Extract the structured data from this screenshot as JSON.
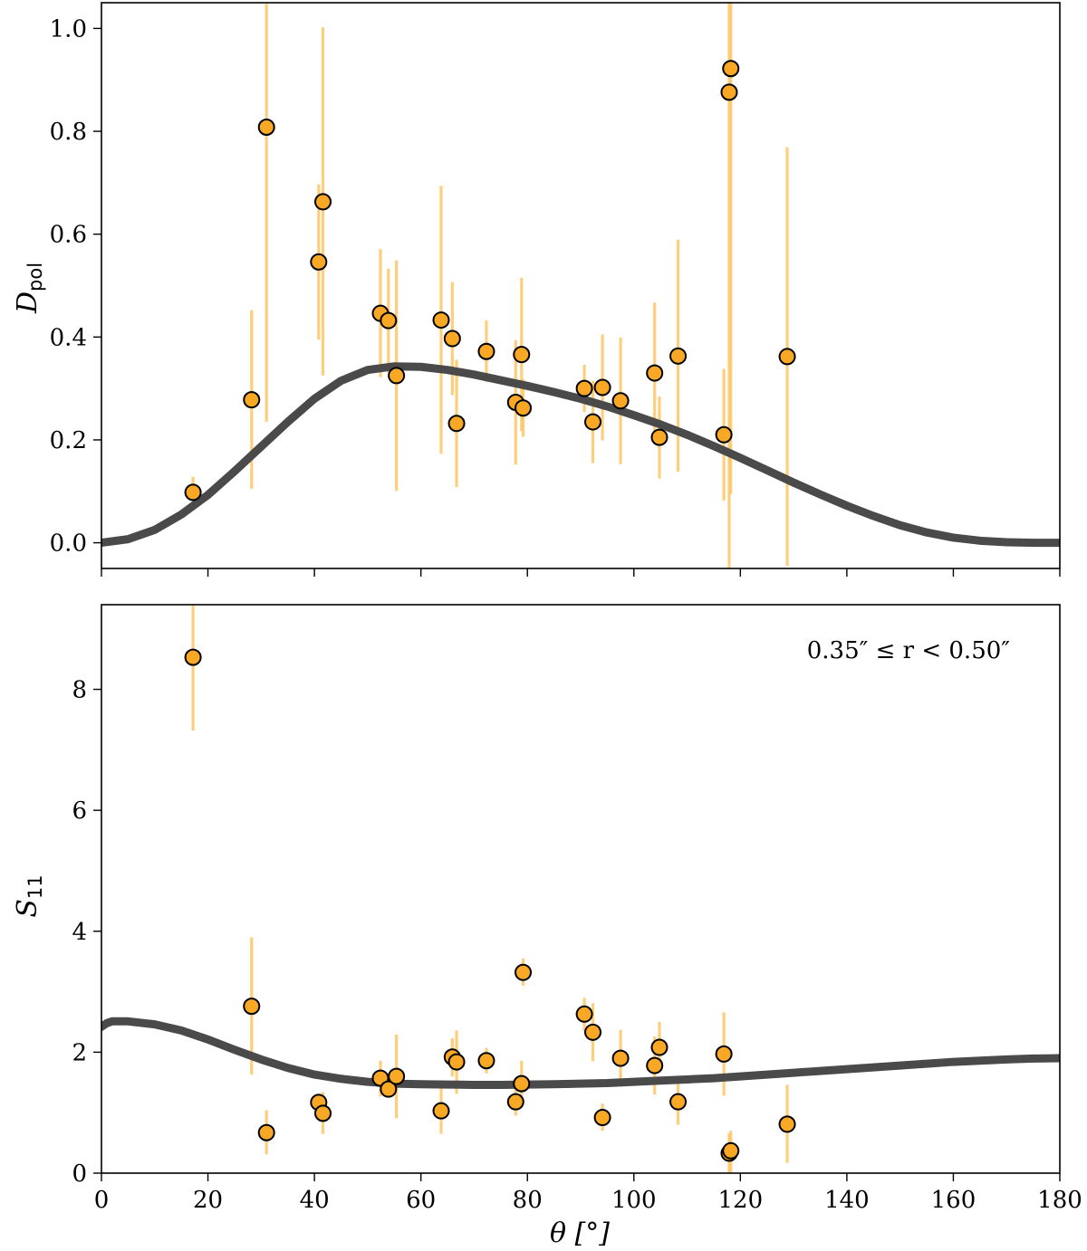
{
  "chart_data": [
    {
      "type": "scatter",
      "panel": "top",
      "ylabel": "D",
      "ylabel_sub": "pol",
      "xlabel": "",
      "xlim": [
        0,
        180
      ],
      "ylim": [
        -0.05,
        1.05
      ],
      "xticks": [
        0,
        20,
        40,
        60,
        80,
        100,
        120,
        140,
        160,
        180
      ],
      "xtick_labels_shown": false,
      "yticks": [
        0.0,
        0.2,
        0.4,
        0.6,
        0.8,
        1.0
      ],
      "ytick_labels": [
        "0.0",
        "0.2",
        "0.4",
        "0.6",
        "0.8",
        "1.0"
      ],
      "series": [
        {
          "name": "data",
          "color": "#f9a825",
          "errorbar_color": "#fdc664",
          "points": [
            {
              "x": 17.2,
              "y": 0.098,
              "lo": 0.068,
              "hi": 0.128
            },
            {
              "x": 28.2,
              "y": 0.278,
              "lo": 0.105,
              "hi": 0.452
            },
            {
              "x": 31.0,
              "y": 0.808,
              "lo": 0.235,
              "hi": 1.05
            },
            {
              "x": 40.8,
              "y": 0.546,
              "lo": 0.395,
              "hi": 0.697
            },
            {
              "x": 41.6,
              "y": 0.663,
              "lo": 0.325,
              "hi": 1.002
            },
            {
              "x": 52.4,
              "y": 0.446,
              "lo": 0.322,
              "hi": 0.571
            },
            {
              "x": 53.9,
              "y": 0.432,
              "lo": 0.331,
              "hi": 0.533
            },
            {
              "x": 55.4,
              "y": 0.325,
              "lo": 0.101,
              "hi": 0.549
            },
            {
              "x": 63.8,
              "y": 0.433,
              "lo": 0.173,
              "hi": 0.694
            },
            {
              "x": 65.9,
              "y": 0.397,
              "lo": 0.287,
              "hi": 0.507
            },
            {
              "x": 66.7,
              "y": 0.232,
              "lo": 0.108,
              "hi": 0.356
            },
            {
              "x": 72.3,
              "y": 0.372,
              "lo": 0.313,
              "hi": 0.432
            },
            {
              "x": 77.8,
              "y": 0.273,
              "lo": 0.152,
              "hi": 0.394
            },
            {
              "x": 78.9,
              "y": 0.366,
              "lo": 0.217,
              "hi": 0.515
            },
            {
              "x": 79.2,
              "y": 0.262,
              "lo": 0.206,
              "hi": 0.318
            },
            {
              "x": 90.7,
              "y": 0.3,
              "lo": 0.254,
              "hi": 0.346
            },
            {
              "x": 92.3,
              "y": 0.235,
              "lo": 0.155,
              "hi": 0.315
            },
            {
              "x": 94.1,
              "y": 0.302,
              "lo": 0.199,
              "hi": 0.405
            },
            {
              "x": 97.5,
              "y": 0.276,
              "lo": 0.153,
              "hi": 0.399
            },
            {
              "x": 103.9,
              "y": 0.33,
              "lo": 0.192,
              "hi": 0.467
            },
            {
              "x": 104.8,
              "y": 0.205,
              "lo": 0.125,
              "hi": 0.284
            },
            {
              "x": 108.3,
              "y": 0.363,
              "lo": 0.138,
              "hi": 0.589
            },
            {
              "x": 116.9,
              "y": 0.21,
              "lo": 0.082,
              "hi": 0.338
            },
            {
              "x": 117.9,
              "y": 0.876,
              "lo": -0.05,
              "hi": 1.05
            },
            {
              "x": 118.2,
              "y": 0.922,
              "lo": 0.095,
              "hi": 1.05
            },
            {
              "x": 128.8,
              "y": 0.362,
              "lo": -0.045,
              "hi": 0.769
            }
          ]
        },
        {
          "name": "model",
          "color": "#4a4a4a",
          "x": [
            0,
            5,
            10,
            15,
            20,
            25,
            30,
            35,
            40,
            45,
            50,
            55,
            60,
            65,
            70,
            75,
            80,
            85,
            90,
            95,
            100,
            105,
            110,
            115,
            120,
            125,
            130,
            135,
            140,
            145,
            150,
            155,
            160,
            165,
            170,
            175,
            180
          ],
          "y": [
            0.0,
            0.007,
            0.025,
            0.055,
            0.093,
            0.139,
            0.187,
            0.235,
            0.28,
            0.315,
            0.336,
            0.343,
            0.342,
            0.336,
            0.327,
            0.316,
            0.305,
            0.293,
            0.28,
            0.265,
            0.248,
            0.23,
            0.21,
            0.188,
            0.165,
            0.141,
            0.117,
            0.094,
            0.072,
            0.052,
            0.034,
            0.02,
            0.01,
            0.004,
            0.001,
            0.0,
            0.0
          ]
        }
      ]
    },
    {
      "type": "scatter",
      "panel": "bottom",
      "ylabel": "S",
      "ylabel_sub": "11",
      "xlabel": "θ [°]",
      "xlim": [
        0,
        180
      ],
      "ylim": [
        0,
        9.4
      ],
      "xticks": [
        0,
        20,
        40,
        60,
        80,
        100,
        120,
        140,
        160,
        180
      ],
      "xtick_labels": [
        "0",
        "20",
        "40",
        "60",
        "80",
        "100",
        "120",
        "140",
        "160",
        "180"
      ],
      "yticks": [
        0,
        2,
        4,
        6,
        8
      ],
      "ytick_labels": [
        "0",
        "2",
        "4",
        "6",
        "8"
      ],
      "annotation": "0.35″ ≤ r < 0.50″",
      "series": [
        {
          "name": "data",
          "color": "#f9a825",
          "errorbar_color": "#fdc664",
          "points": [
            {
              "x": 17.2,
              "y": 8.53,
              "lo": 7.32,
              "hi": 9.4
            },
            {
              "x": 28.2,
              "y": 2.76,
              "lo": 1.63,
              "hi": 3.9
            },
            {
              "x": 31.0,
              "y": 0.67,
              "lo": 0.31,
              "hi": 1.04
            },
            {
              "x": 40.8,
              "y": 1.17,
              "lo": 1.08,
              "hi": 1.26
            },
            {
              "x": 41.6,
              "y": 0.99,
              "lo": 0.65,
              "hi": 1.34
            },
            {
              "x": 52.4,
              "y": 1.57,
              "lo": 1.27,
              "hi": 1.86
            },
            {
              "x": 53.9,
              "y": 1.39,
              "lo": 1.29,
              "hi": 1.49
            },
            {
              "x": 55.4,
              "y": 1.6,
              "lo": 0.91,
              "hi": 2.29
            },
            {
              "x": 63.8,
              "y": 1.03,
              "lo": 0.65,
              "hi": 1.41
            },
            {
              "x": 65.9,
              "y": 1.92,
              "lo": 1.6,
              "hi": 2.23
            },
            {
              "x": 66.7,
              "y": 1.84,
              "lo": 1.31,
              "hi": 2.36
            },
            {
              "x": 72.3,
              "y": 1.86,
              "lo": 1.65,
              "hi": 2.07
            },
            {
              "x": 77.8,
              "y": 1.18,
              "lo": 0.95,
              "hi": 1.4
            },
            {
              "x": 78.9,
              "y": 1.48,
              "lo": 1.1,
              "hi": 1.86
            },
            {
              "x": 79.2,
              "y": 3.32,
              "lo": 3.1,
              "hi": 3.55
            },
            {
              "x": 90.7,
              "y": 2.63,
              "lo": 2.35,
              "hi": 2.9
            },
            {
              "x": 92.3,
              "y": 2.33,
              "lo": 1.85,
              "hi": 2.81
            },
            {
              "x": 94.1,
              "y": 0.92,
              "lo": 0.7,
              "hi": 1.15
            },
            {
              "x": 97.5,
              "y": 1.9,
              "lo": 1.43,
              "hi": 2.37
            },
            {
              "x": 103.9,
              "y": 1.78,
              "lo": 1.3,
              "hi": 2.26
            },
            {
              "x": 104.8,
              "y": 2.08,
              "lo": 1.66,
              "hi": 2.5
            },
            {
              "x": 108.3,
              "y": 1.18,
              "lo": 0.8,
              "hi": 1.56
            },
            {
              "x": 116.9,
              "y": 1.97,
              "lo": 1.28,
              "hi": 2.66
            },
            {
              "x": 117.9,
              "y": 0.33,
              "lo": 0.0,
              "hi": 0.66
            },
            {
              "x": 118.2,
              "y": 0.37,
              "lo": 0.0,
              "hi": 0.7
            },
            {
              "x": 128.8,
              "y": 0.81,
              "lo": 0.17,
              "hi": 1.46
            }
          ]
        },
        {
          "name": "model",
          "color": "#4a4a4a",
          "x": [
            0,
            1,
            2,
            5,
            10,
            15,
            20,
            25,
            30,
            35,
            40,
            45,
            50,
            55,
            60,
            65,
            70,
            75,
            80,
            85,
            90,
            95,
            100,
            105,
            110,
            115,
            120,
            125,
            130,
            135,
            140,
            145,
            150,
            155,
            160,
            165,
            170,
            175,
            180
          ],
          "y": [
            2.42,
            2.48,
            2.51,
            2.51,
            2.46,
            2.36,
            2.21,
            2.04,
            1.88,
            1.74,
            1.63,
            1.56,
            1.51,
            1.48,
            1.47,
            1.465,
            1.46,
            1.46,
            1.465,
            1.47,
            1.48,
            1.49,
            1.51,
            1.53,
            1.55,
            1.57,
            1.6,
            1.63,
            1.66,
            1.69,
            1.72,
            1.75,
            1.78,
            1.81,
            1.84,
            1.86,
            1.88,
            1.895,
            1.9
          ]
        }
      ]
    }
  ]
}
